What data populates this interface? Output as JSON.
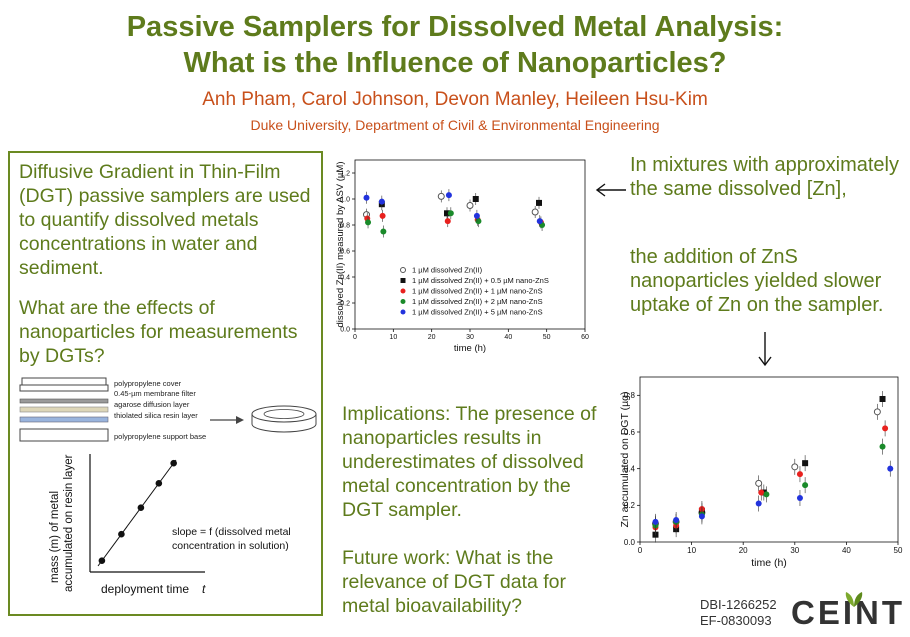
{
  "title_line1": "Passive Samplers for Dissolved Metal Analysis:",
  "title_line2": "What is the Influence of Nanoparticles?",
  "authors": [
    "Anh Pham",
    "Carol Johnson",
    "Devon Manley",
    "Heileen Hsu-Kim"
  ],
  "author_sep": ", ",
  "affiliation": "Duke University, Department of Civil & Environmental Engineering",
  "left_box": {
    "intro": "Diffusive Gradient in Thin-Film (DGT) passive samplers are used to quantify dissolved metals concentrations in water and sediment.",
    "question": "What are the effects of nanoparticles for measurements by DGTs?",
    "layers": [
      "polypropylene cover",
      "0.45-µm membrane filter",
      "agarose diffusion layer",
      "thiolated silica resin layer",
      "polypropylene support base"
    ],
    "ylabel_line1": "mass (m) of metal",
    "ylabel_line2": "accumulated on resin layer",
    "xlabel": "deployment time",
    "xlabel_var": "t",
    "slope_line1": "slope = f (dissolved metal",
    "slope_line2": "concentration in solution)",
    "points": [
      0.05,
      0.3,
      0.55,
      0.78,
      0.97
    ]
  },
  "right_text1": "In mixtures with approximately the same dissolved [Zn],",
  "right_text2": "the addition of ZnS nanoparticles yielded slower uptake of Zn on the sampler.",
  "implications": "Implications: The presence of nanoparticles results in underestimates of dissolved metal concentration by the DGT sampler.",
  "future": "Future work: What is the relevance of DGT data for metal bioavailability?",
  "grants": [
    "DBI-1266252",
    "EF-0830093"
  ],
  "logo": "CEINT",
  "colors": {
    "title": "#5e7b1c",
    "author": "#c8501b",
    "border": "#6b8a22"
  },
  "chart_data": [
    {
      "type": "scatter",
      "xlabel": "time (h)",
      "ylabel": "dissolved Zn(II) measured by ASV (µM)",
      "xlim": [
        0,
        60
      ],
      "ylim": [
        0,
        1.3
      ],
      "xticks": [
        0,
        10,
        20,
        30,
        40,
        50,
        60
      ],
      "yticks": [
        0.0,
        0.2,
        0.4,
        0.6,
        0.8,
        1.0,
        1.2
      ],
      "legend_position": "bottom-right",
      "series": [
        {
          "name": "1 µM dissolved Zn(II)",
          "marker": "open-circle",
          "color": "#555555",
          "x": [
            3,
            22.5,
            30,
            47
          ],
          "y": [
            0.88,
            1.02,
            0.95,
            0.9
          ]
        },
        {
          "name": "1 µM dissolved Zn(II) + 0.5 µM nano-ZnS",
          "marker": "square",
          "color": "#111111",
          "x": [
            7,
            24,
            31.5,
            48
          ],
          "y": [
            0.96,
            0.89,
            1.0,
            0.97
          ]
        },
        {
          "name": "1 µM dissolved Zn(II) + 1 µM nano-ZnS",
          "marker": "circle",
          "color": "#e8211e",
          "x": [
            3.2,
            7.2,
            24.2,
            32,
            48.5
          ],
          "y": [
            0.85,
            0.87,
            0.83,
            0.84,
            0.82
          ]
        },
        {
          "name": "1 µM dissolved Zn(II) + 2 µM nano-ZnS",
          "marker": "circle",
          "color": "#1a8a2a",
          "x": [
            3.4,
            7.4,
            25,
            32.2,
            48.8
          ],
          "y": [
            0.82,
            0.75,
            0.89,
            0.83,
            0.8
          ]
        },
        {
          "name": "1 µM dissolved Zn(II) + 5 µM nano-ZnS",
          "marker": "circle",
          "color": "#2233dd",
          "x": [
            3,
            7,
            24.5,
            31.8,
            48.2
          ],
          "y": [
            1.01,
            0.98,
            1.03,
            0.87,
            0.83
          ]
        }
      ]
    },
    {
      "type": "scatter",
      "xlabel": "time (h)",
      "ylabel": "Zn accumulated on DGT (µg)",
      "xlim": [
        0,
        50
      ],
      "ylim": [
        0,
        0.9
      ],
      "xticks": [
        0,
        10,
        20,
        30,
        40,
        50
      ],
      "yticks": [
        0.0,
        0.2,
        0.4,
        0.6,
        0.8
      ],
      "series": [
        {
          "name": "1 µM dissolved Zn(II)",
          "marker": "open-circle",
          "color": "#555555",
          "x": [
            3,
            7,
            12,
            23,
            30,
            46
          ],
          "y": [
            0.1,
            0.11,
            0.16,
            0.32,
            0.41,
            0.71
          ]
        },
        {
          "name": "1 µM dissolved Zn(II) + 0.5 µM nano-ZnS",
          "marker": "square",
          "color": "#111111",
          "x": [
            3,
            7,
            12,
            24,
            32,
            47
          ],
          "y": [
            0.04,
            0.07,
            0.17,
            0.27,
            0.43,
            0.78
          ]
        },
        {
          "name": "1 µM dissolved Zn(II) + 1 µM nano-ZnS",
          "marker": "circle",
          "color": "#e8211e",
          "x": [
            3,
            7,
            12,
            23.5,
            31,
            47.5
          ],
          "y": [
            0.08,
            0.09,
            0.18,
            0.27,
            0.37,
            0.62
          ]
        },
        {
          "name": "1 µM dissolved Zn(II) + 2 µM nano-ZnS",
          "marker": "circle",
          "color": "#1a8a2a",
          "x": [
            3,
            7,
            12,
            24.5,
            32,
            47
          ],
          "y": [
            0.09,
            0.11,
            0.15,
            0.26,
            0.31,
            0.52
          ]
        },
        {
          "name": "1 µM dissolved Zn(II) + 5 µM nano-ZnS",
          "marker": "circle",
          "color": "#2233dd",
          "x": [
            3,
            7,
            12,
            23,
            31,
            48.5
          ],
          "y": [
            0.11,
            0.12,
            0.14,
            0.21,
            0.24,
            0.4
          ]
        }
      ]
    }
  ]
}
